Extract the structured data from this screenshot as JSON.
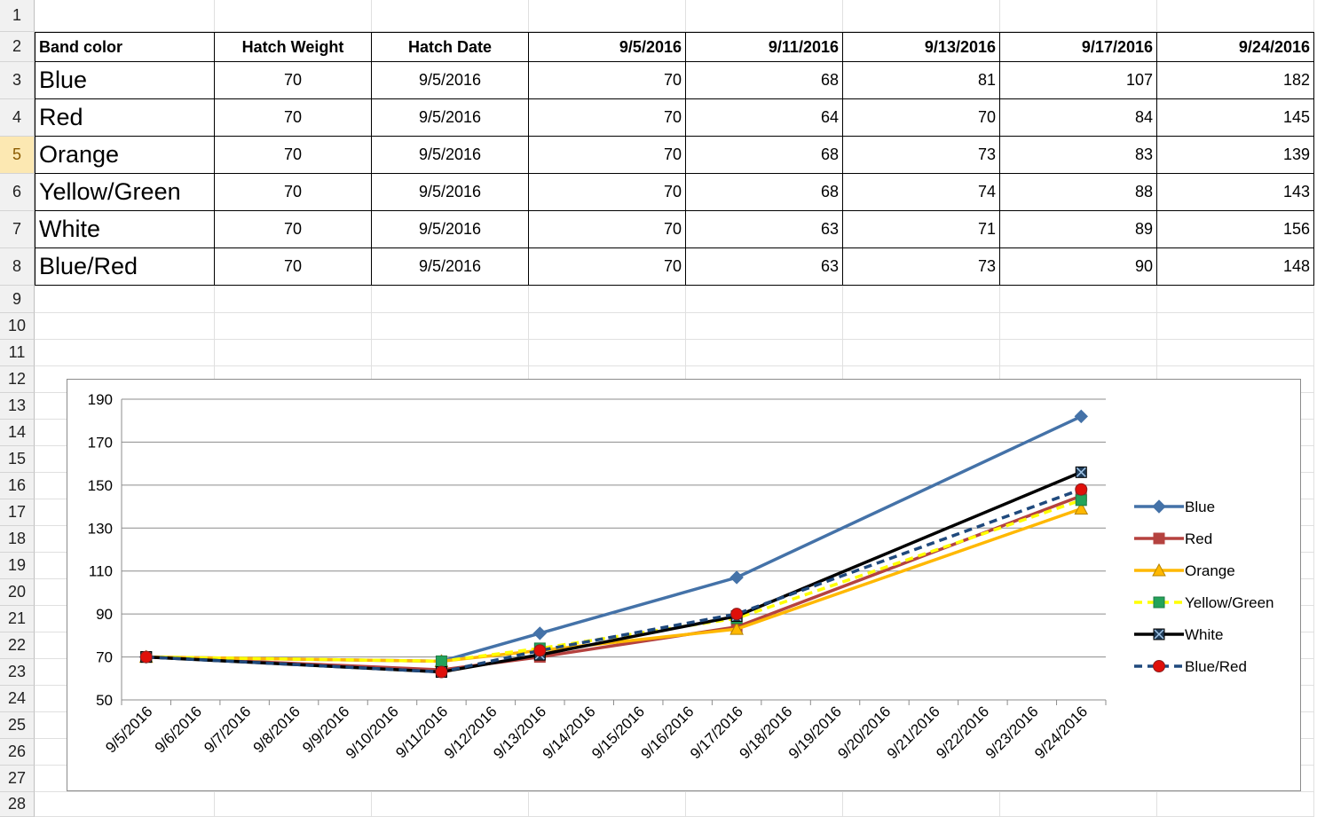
{
  "row_numbers": [
    "1",
    "2",
    "3",
    "4",
    "5",
    "6",
    "7",
    "8",
    "9",
    "10",
    "11",
    "12",
    "13",
    "14",
    "15",
    "16",
    "17",
    "18",
    "19",
    "20",
    "21",
    "22",
    "23",
    "24",
    "25",
    "26",
    "27",
    "28"
  ],
  "selected_row": "5",
  "table": {
    "headers": [
      "Band color",
      "Hatch Weight",
      "Hatch Date",
      "9/5/2016",
      "9/11/2016",
      "9/13/2016",
      "9/17/2016",
      "9/24/2016"
    ],
    "rows": [
      {
        "band": "Blue",
        "weight": "70",
        "date": "9/5/2016",
        "v": [
          "70",
          "68",
          "81",
          "107",
          "182"
        ]
      },
      {
        "band": "Red",
        "weight": "70",
        "date": "9/5/2016",
        "v": [
          "70",
          "64",
          "70",
          "84",
          "145"
        ]
      },
      {
        "band": "Orange",
        "weight": "70",
        "date": "9/5/2016",
        "v": [
          "70",
          "68",
          "73",
          "83",
          "139"
        ]
      },
      {
        "band": "Yellow/Green",
        "weight": "70",
        "date": "9/5/2016",
        "v": [
          "70",
          "68",
          "74",
          "88",
          "143"
        ]
      },
      {
        "band": "White",
        "weight": "70",
        "date": "9/5/2016",
        "v": [
          "70",
          "63",
          "71",
          "89",
          "156"
        ]
      },
      {
        "band": "Blue/Red",
        "weight": "70",
        "date": "9/5/2016",
        "v": [
          "70",
          "63",
          "73",
          "90",
          "148"
        ]
      }
    ]
  },
  "chart_data": {
    "type": "line",
    "title": "",
    "xlabel": "",
    "ylabel": "",
    "ylim": [
      50,
      190
    ],
    "yticks": [
      50,
      70,
      90,
      110,
      130,
      150,
      170,
      190
    ],
    "x_categories": [
      "9/5/2016",
      "9/6/2016",
      "9/7/2016",
      "9/8/2016",
      "9/9/2016",
      "9/10/2016",
      "9/11/2016",
      "9/12/2016",
      "9/13/2016",
      "9/14/2016",
      "9/15/2016",
      "9/16/2016",
      "9/17/2016",
      "9/18/2016",
      "9/19/2016",
      "9/20/2016",
      "9/21/2016",
      "9/22/2016",
      "9/23/2016",
      "9/24/2016"
    ],
    "x": [
      "9/5/2016",
      "9/11/2016",
      "9/13/2016",
      "9/17/2016",
      "9/24/2016"
    ],
    "grid": true,
    "legend": "right",
    "series": [
      {
        "name": "Blue",
        "values": [
          70,
          68,
          81,
          107,
          182
        ],
        "color": "#4472a8",
        "marker": "diamond",
        "dash": "solid"
      },
      {
        "name": "Red",
        "values": [
          70,
          64,
          70,
          84,
          145
        ],
        "color": "#b5423f",
        "marker": "square",
        "dash": "solid"
      },
      {
        "name": "Orange",
        "values": [
          70,
          68,
          73,
          83,
          139
        ],
        "color": "#ffb800",
        "marker": "triangle",
        "dash": "solid"
      },
      {
        "name": "Yellow/Green",
        "values": [
          70,
          68,
          74,
          88,
          143
        ],
        "color": "#ffff00",
        "marker": "square-green",
        "dash": "dashed"
      },
      {
        "name": "White",
        "values": [
          70,
          63,
          71,
          89,
          156
        ],
        "color": "#000000",
        "marker": "x-box",
        "dash": "solid"
      },
      {
        "name": "Blue/Red",
        "values": [
          70,
          63,
          73,
          90,
          148
        ],
        "color": "#1f497d",
        "marker": "circle-red",
        "dash": "dashed"
      }
    ]
  }
}
